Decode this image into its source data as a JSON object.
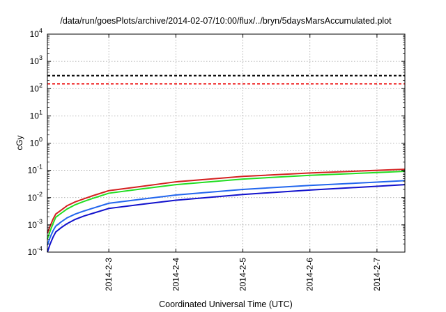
{
  "chart_data": {
    "type": "line",
    "title": "/data/run/goesPlots/archive/2014-02-07/10:00/flux/../bryn/5daysMarsAccumulated.plot",
    "xlabel": "Coordinated Universal Time (UTC)",
    "ylabel": "cGy",
    "y_scale": "log",
    "ylim": [
      0.0001,
      10000
    ],
    "y_ticks": [
      {
        "value": 0.0001,
        "base": "10",
        "exp": "-4"
      },
      {
        "value": 0.001,
        "base": "10",
        "exp": "-3"
      },
      {
        "value": 0.01,
        "base": "10",
        "exp": "-2"
      },
      {
        "value": 0.1,
        "base": "10",
        "exp": "-1"
      },
      {
        "value": 1,
        "base": "10",
        "exp": "0"
      },
      {
        "value": 10,
        "base": "10",
        "exp": "1"
      },
      {
        "value": 100,
        "base": "10",
        "exp": "2"
      },
      {
        "value": 1000,
        "base": "10",
        "exp": "3"
      },
      {
        "value": 10000,
        "base": "10",
        "exp": "4"
      }
    ],
    "xlim": [
      "2014-02-02T02:00",
      "2014-02-07T10:00"
    ],
    "x_ticks": [
      {
        "value": "2014-02-03T00:00",
        "label": "2014-2-3"
      },
      {
        "value": "2014-02-04T00:00",
        "label": "2014-2-4"
      },
      {
        "value": "2014-02-05T00:00",
        "label": "2014-2-5"
      },
      {
        "value": "2014-02-06T00:00",
        "label": "2014-2-6"
      },
      {
        "value": "2014-02-07T00:00",
        "label": "2014-2-7"
      }
    ],
    "grid": true,
    "legend": "none",
    "reference_lines": [
      {
        "y": 300,
        "color": "#000000",
        "style": "dashed"
      },
      {
        "y": 150,
        "color": "#ee1111",
        "style": "dashed"
      }
    ],
    "series": [
      {
        "color": "#d42020",
        "points": [
          [
            "2014-02-02T02:00",
            0.0005
          ],
          [
            "2014-02-02T03:00",
            0.0009
          ],
          [
            "2014-02-02T04:00",
            0.0016
          ],
          [
            "2014-02-02T05:00",
            0.0025
          ],
          [
            "2014-02-02T07:00",
            0.0035
          ],
          [
            "2014-02-02T09:00",
            0.005
          ],
          [
            "2014-02-02T12:00",
            0.007
          ],
          [
            "2014-02-02T15:00",
            0.009
          ],
          [
            "2014-02-02T18:00",
            0.0115
          ],
          [
            "2014-02-03T00:00",
            0.018
          ],
          [
            "2014-02-03T12:00",
            0.026
          ],
          [
            "2014-02-04T00:00",
            0.038
          ],
          [
            "2014-02-05T00:00",
            0.06
          ],
          [
            "2014-02-06T00:00",
            0.08
          ],
          [
            "2014-02-07T00:00",
            0.1
          ],
          [
            "2014-02-07T10:00",
            0.11
          ]
        ]
      },
      {
        "color": "#22dd22",
        "points": [
          [
            "2014-02-02T02:00",
            0.0003
          ],
          [
            "2014-02-02T03:00",
            0.0006
          ],
          [
            "2014-02-02T04:00",
            0.0011
          ],
          [
            "2014-02-02T05:00",
            0.0019
          ],
          [
            "2014-02-02T07:00",
            0.0027
          ],
          [
            "2014-02-02T09:00",
            0.0038
          ],
          [
            "2014-02-02T12:00",
            0.0055
          ],
          [
            "2014-02-02T15:00",
            0.0072
          ],
          [
            "2014-02-02T18:00",
            0.0092
          ],
          [
            "2014-02-03T00:00",
            0.0145
          ],
          [
            "2014-02-03T12:00",
            0.021
          ],
          [
            "2014-02-04T00:00",
            0.03
          ],
          [
            "2014-02-05T00:00",
            0.048
          ],
          [
            "2014-02-06T00:00",
            0.066
          ],
          [
            "2014-02-07T00:00",
            0.083
          ],
          [
            "2014-02-07T10:00",
            0.092
          ]
        ]
      },
      {
        "color": "#2266ee",
        "points": [
          [
            "2014-02-02T02:00",
            0.00018
          ],
          [
            "2014-02-02T03:00",
            0.00035
          ],
          [
            "2014-02-02T04:00",
            0.0006
          ],
          [
            "2014-02-02T05:00",
            0.0009
          ],
          [
            "2014-02-02T07:00",
            0.0013
          ],
          [
            "2014-02-02T09:00",
            0.0018
          ],
          [
            "2014-02-02T12:00",
            0.0025
          ],
          [
            "2014-02-02T15:00",
            0.0032
          ],
          [
            "2014-02-02T18:00",
            0.004
          ],
          [
            "2014-02-03T00:00",
            0.0062
          ],
          [
            "2014-02-03T12:00",
            0.0088
          ],
          [
            "2014-02-04T00:00",
            0.0125
          ],
          [
            "2014-02-05T00:00",
            0.02
          ],
          [
            "2014-02-06T00:00",
            0.028
          ],
          [
            "2014-02-07T00:00",
            0.037
          ],
          [
            "2014-02-07T10:00",
            0.042
          ]
        ]
      },
      {
        "color": "#1111cc",
        "points": [
          [
            "2014-02-02T02:00",
            0.0001
          ],
          [
            "2014-02-02T03:00",
            0.0002
          ],
          [
            "2014-02-02T04:00",
            0.00035
          ],
          [
            "2014-02-02T05:00",
            0.00055
          ],
          [
            "2014-02-02T07:00",
            0.0008
          ],
          [
            "2014-02-02T09:00",
            0.0011
          ],
          [
            "2014-02-02T12:00",
            0.0016
          ],
          [
            "2014-02-02T15:00",
            0.0021
          ],
          [
            "2014-02-02T18:00",
            0.0026
          ],
          [
            "2014-02-03T00:00",
            0.004
          ],
          [
            "2014-02-03T12:00",
            0.0057
          ],
          [
            "2014-02-04T00:00",
            0.008
          ],
          [
            "2014-02-05T00:00",
            0.013
          ],
          [
            "2014-02-06T00:00",
            0.019
          ],
          [
            "2014-02-07T00:00",
            0.026
          ],
          [
            "2014-02-07T10:00",
            0.03
          ]
        ]
      }
    ]
  }
}
